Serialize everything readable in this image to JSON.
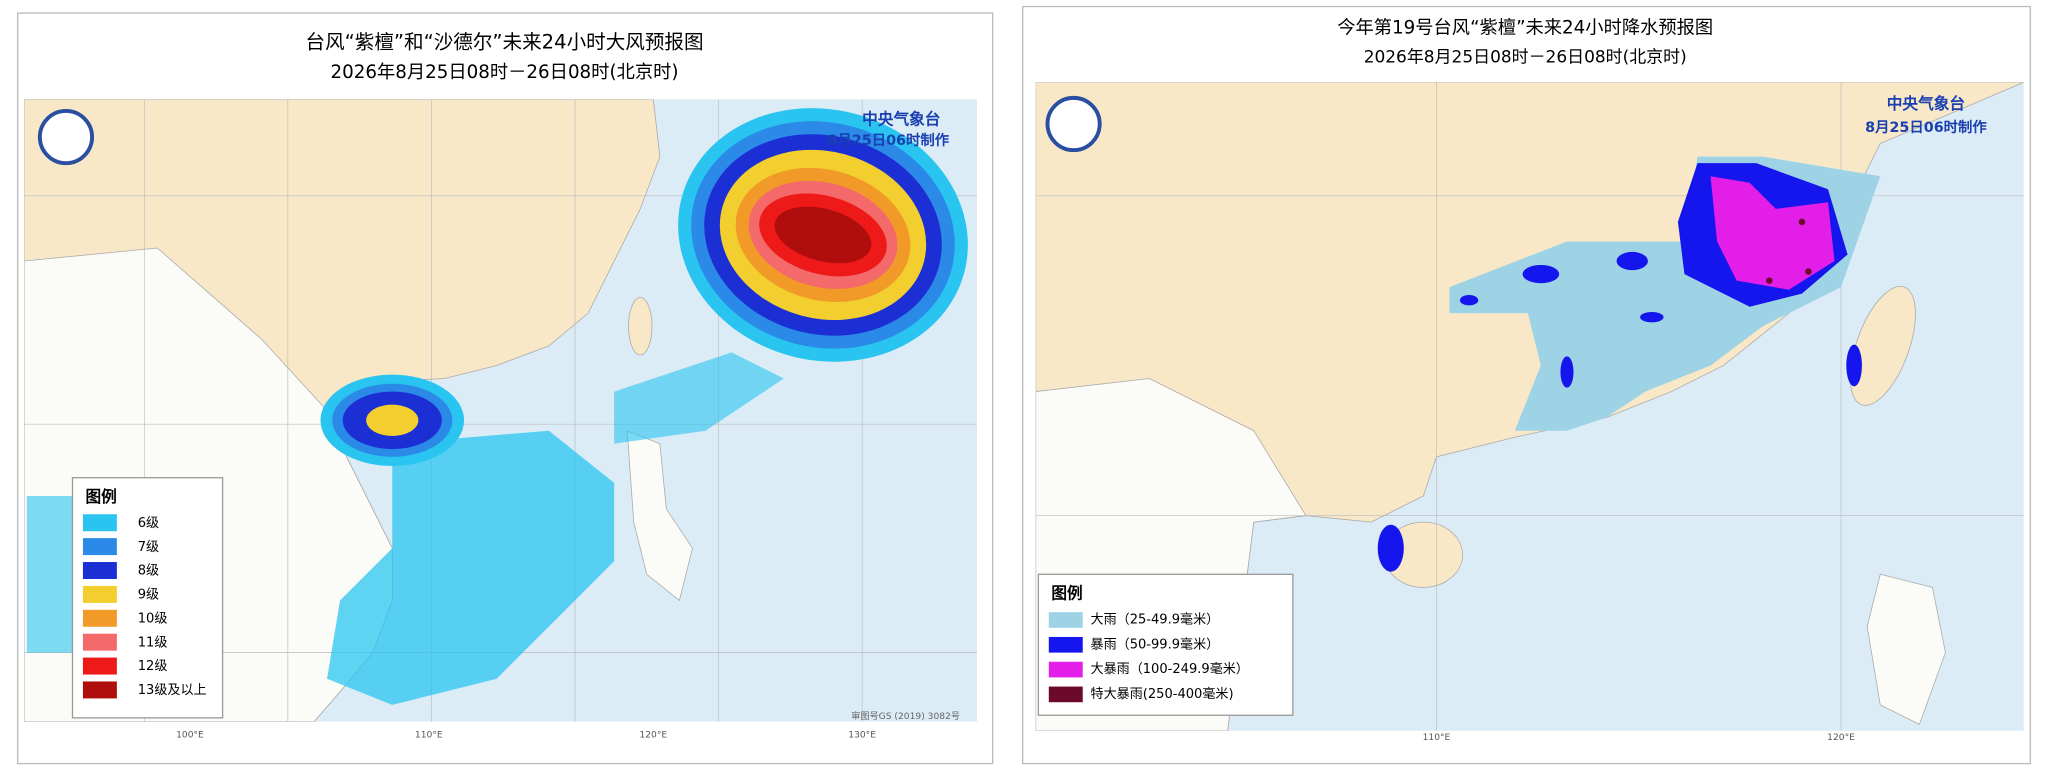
{
  "left_map": {
    "title": "台风“紫檀”和“沙德尔”未来24小时大风预报图",
    "subtitle": "2026年8月25日08时－26日08时(北京时)",
    "agency": "中央气象台",
    "issued": "8月25日06时制作",
    "lon_labels": [
      "100°E",
      "110°E",
      "120°E",
      "130°E"
    ],
    "approval": "审图号GS (2019) 3082号",
    "legend": {
      "title": "图例",
      "items": [
        {
          "label": "6级",
          "color": "#29c5f0"
        },
        {
          "label": "7级",
          "color": "#2b8ae8"
        },
        {
          "label": "8级",
          "color": "#1b2fd4"
        },
        {
          "label": "9级",
          "color": "#f2cf2e"
        },
        {
          "label": "10级",
          "color": "#f29a28"
        },
        {
          "label": "11级",
          "color": "#f46a6a"
        },
        {
          "label": "12级",
          "color": "#ee1a1a"
        },
        {
          "label": "13级及以上",
          "color": "#b00d0d"
        }
      ]
    }
  },
  "right_map": {
    "title": "今年第19号台风“紫檀”未来24小时降水预报图",
    "subtitle": "2026年8月25日08时－26日08时(北京时)",
    "agency": "中央气象台",
    "issued": "8月25日06时制作",
    "lon_labels": [
      "110°E",
      "120°E"
    ],
    "legend": {
      "title": "图例",
      "items": [
        {
          "label": "大雨（25-49.9毫米）",
          "color": "#9ed3e6"
        },
        {
          "label": "暴雨（50-99.9毫米）",
          "color": "#1515ee"
        },
        {
          "label": "大暴雨（100-249.9毫米）",
          "color": "#e21ee8"
        },
        {
          "label": "特大暴雨(250-400毫米)",
          "color": "#6b0a2a"
        }
      ]
    }
  }
}
